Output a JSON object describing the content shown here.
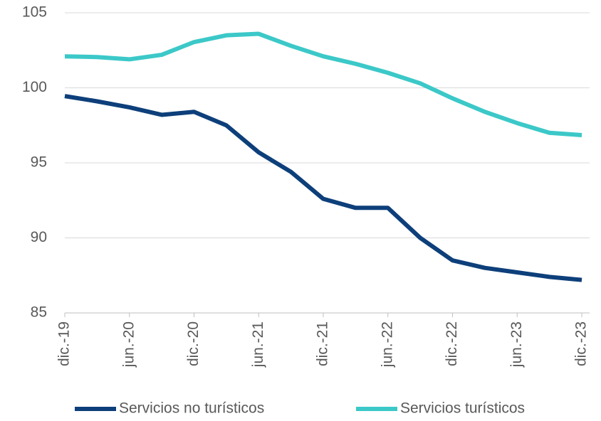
{
  "chart_data": {
    "type": "line",
    "categories": [
      "dic.-19",
      null,
      "jun.-20",
      null,
      "dic.-20",
      null,
      "jun.-21",
      null,
      "dic.-21",
      null,
      "jun.-22",
      null,
      "dic.-22",
      null,
      "jun.-23",
      null,
      "dic.-23"
    ],
    "series": [
      {
        "name": "Servicios no turísticos",
        "color": "#0d3f7a",
        "values": [
          99.45,
          99.1,
          98.7,
          98.2,
          98.4,
          97.5,
          95.7,
          94.4,
          92.6,
          92.0,
          92.0,
          90.0,
          88.5,
          88.0,
          87.7,
          87.4,
          87.2
        ]
      },
      {
        "name": "Servicios turísticos",
        "color": "#3cc8c8",
        "values": [
          102.1,
          102.05,
          101.9,
          102.2,
          103.05,
          103.5,
          103.6,
          102.8,
          102.1,
          101.6,
          101.0,
          100.3,
          99.3,
          98.4,
          97.65,
          97.0,
          96.85
        ]
      }
    ],
    "ylim": [
      85,
      105
    ],
    "yticks": [
      85,
      90,
      95,
      100,
      105
    ],
    "grid": true,
    "legend": "bottom"
  }
}
